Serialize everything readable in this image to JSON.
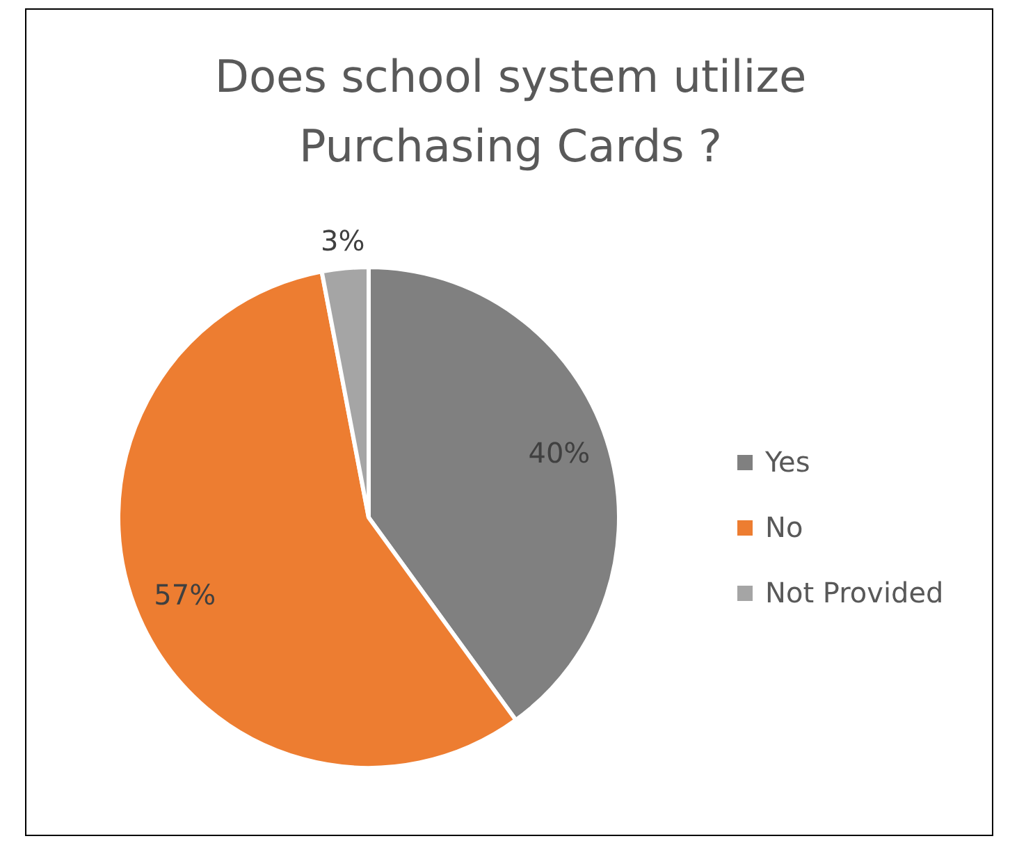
{
  "chart_data": {
    "type": "pie",
    "title": "Does school system utilize Purchasing Cards ?",
    "categories": [
      "Yes",
      "No",
      "Not Provided"
    ],
    "values": [
      40,
      57,
      3
    ],
    "colors": [
      "#808080",
      "#ed7d31",
      "#a5a5a5"
    ],
    "value_labels": [
      "40%",
      "57%",
      "3%"
    ],
    "legend": "right"
  }
}
